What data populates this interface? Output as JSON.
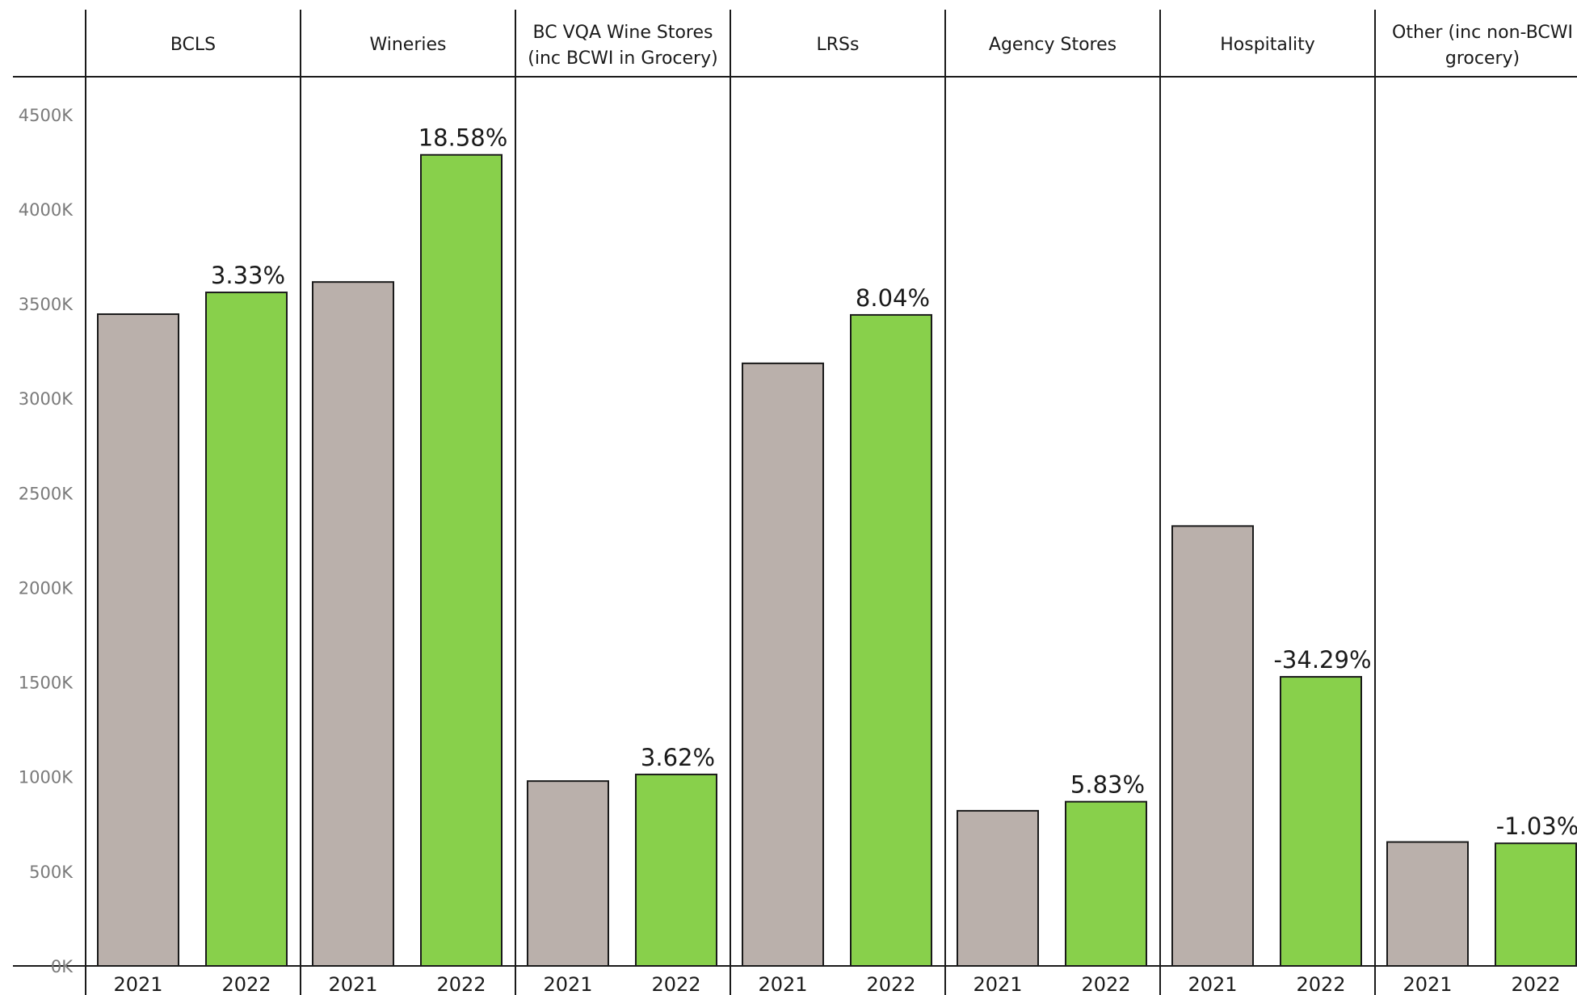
{
  "chart_data": {
    "type": "bar",
    "categories": [
      {
        "name": "BCLS",
        "lines": [
          "BCLS"
        ]
      },
      {
        "name": "Wineries",
        "lines": [
          "Wineries"
        ]
      },
      {
        "name": "BC VQA Wine Stores (inc BCWI in Grocery)",
        "lines": [
          "BC VQA Wine Stores",
          "(inc BCWI in Grocery)"
        ]
      },
      {
        "name": "LRSs",
        "lines": [
          "LRSs"
        ]
      },
      {
        "name": "Agency Stores",
        "lines": [
          "Agency Stores"
        ]
      },
      {
        "name": "Hospitality",
        "lines": [
          "Hospitality"
        ]
      },
      {
        "name": "Other (inc non-BCWI grocery)",
        "lines": [
          "Other (inc non-BCWI",
          "grocery)"
        ]
      }
    ],
    "x_sublabels": [
      "2021",
      "2022"
    ],
    "series": [
      {
        "name": "2021",
        "values": [
          3445,
          3615,
          977,
          3185,
          820,
          2325,
          655
        ]
      },
      {
        "name": "2022",
        "values": [
          3560,
          4287,
          1012,
          3441,
          868,
          1528,
          648
        ]
      }
    ],
    "annotations": [
      "3.33%",
      "18.58%",
      "3.62%",
      "8.04%",
      "5.83%",
      "-34.29%",
      "-1.03%"
    ],
    "yticks": [
      {
        "value": 0,
        "label": "0K"
      },
      {
        "value": 500,
        "label": "500K"
      },
      {
        "value": 1000,
        "label": "1000K"
      },
      {
        "value": 1500,
        "label": "1500K"
      },
      {
        "value": 2000,
        "label": "2000K"
      },
      {
        "value": 2500,
        "label": "2500K"
      },
      {
        "value": 3000,
        "label": "3000K"
      },
      {
        "value": 3500,
        "label": "3500K"
      },
      {
        "value": 4000,
        "label": "4000K"
      },
      {
        "value": 4500,
        "label": "4500K"
      }
    ],
    "ylim": [
      0,
      4700
    ],
    "grid": false,
    "colors": {
      "2021": "#bab0ab",
      "2022": "#88d04b"
    }
  }
}
